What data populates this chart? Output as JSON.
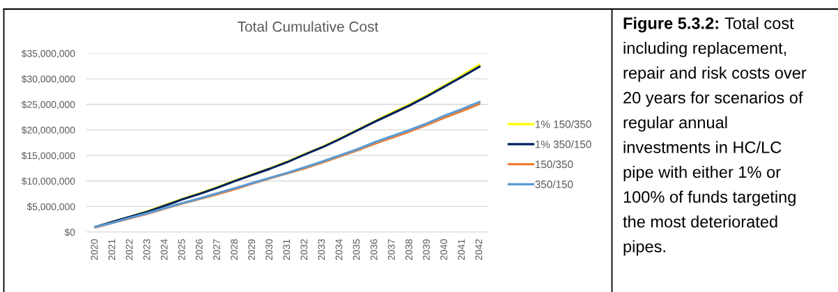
{
  "chart_data": {
    "type": "line",
    "title": "Total Cumulative Cost",
    "categories": [
      "2020",
      "2021",
      "2022",
      "2023",
      "2024",
      "2025",
      "2026",
      "2027",
      "2028",
      "2029",
      "2030",
      "2031",
      "2032",
      "2033",
      "2034",
      "2035",
      "2036",
      "2037",
      "2038",
      "2039",
      "2040",
      "2041",
      "2042"
    ],
    "series": [
      {
        "name": "1% 150/350",
        "color": "#ffff00",
        "values": [
          1000000,
          2000000,
          3000000,
          4100000,
          5300000,
          6500000,
          7600000,
          8800000,
          10100000,
          11300000,
          12500000,
          13800000,
          15300000,
          16700000,
          18300000,
          20000000,
          21700000,
          23400000,
          25000000,
          26800000,
          28700000,
          30700000,
          32800000
        ]
      },
      {
        "name": "1% 350/150",
        "color": "#002060",
        "values": [
          1000000,
          2000000,
          3000000,
          4000000,
          5200000,
          6400000,
          7500000,
          8700000,
          10000000,
          11200000,
          12400000,
          13700000,
          15200000,
          16600000,
          18200000,
          19900000,
          21600000,
          23200000,
          24800000,
          26600000,
          28500000,
          30400000,
          32400000
        ]
      },
      {
        "name": "150/350",
        "color": "#ed7d31",
        "values": [
          900000,
          1800000,
          2700000,
          3600000,
          4600000,
          5600000,
          6500000,
          7400000,
          8400000,
          9500000,
          10500000,
          11500000,
          12500000,
          13600000,
          14800000,
          16000000,
          17300000,
          18500000,
          19700000,
          21000000,
          22400000,
          23700000,
          25100000
        ]
      },
      {
        "name": "350/150",
        "color": "#5b9bd5",
        "values": [
          1000000,
          1800000,
          2800000,
          3700000,
          4700000,
          5700000,
          6600000,
          7600000,
          8600000,
          9600000,
          10600000,
          11600000,
          12700000,
          13800000,
          15000000,
          16200000,
          17600000,
          18800000,
          20000000,
          21300000,
          22800000,
          24100000,
          25500000
        ]
      }
    ],
    "ylim": [
      0,
      35000000
    ],
    "yticks": [
      {
        "value": 0,
        "label": "$0"
      },
      {
        "value": 5000000,
        "label": "$5,000,000"
      },
      {
        "value": 10000000,
        "label": "$10,000,000"
      },
      {
        "value": 15000000,
        "label": "$15,000,000"
      },
      {
        "value": 20000000,
        "label": "$20,000,000"
      },
      {
        "value": 25000000,
        "label": "$25,000,000"
      },
      {
        "value": 30000000,
        "label": "$30,000,000"
      },
      {
        "value": 35000000,
        "label": "$35,000,000"
      }
    ],
    "grid": "y",
    "legend": "right",
    "marker": "none",
    "line_style": "solid",
    "annotations": [
      "Figure 5.3.2:",
      "Total cost",
      "including replacement,\nrepair and risk costs over\n20 years for scenarios of\nregular annual\ninvestments in HC/LC\npipe with either 1% or\n100% of funds targeting\nthe most deteriorated\npipes."
    ]
  }
}
